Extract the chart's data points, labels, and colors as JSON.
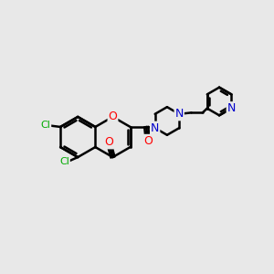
{
  "background_color": "#e8e8e8",
  "bond_color": "#000000",
  "bond_width": 1.8,
  "atom_colors": {
    "O": "#ff0000",
    "N": "#0000cc",
    "Cl": "#00aa00",
    "C": "#000000"
  },
  "font_size": 9,
  "fig_width": 3.0,
  "fig_height": 3.0,
  "xlim": [
    0.0,
    10.0
  ],
  "ylim": [
    2.5,
    8.5
  ]
}
